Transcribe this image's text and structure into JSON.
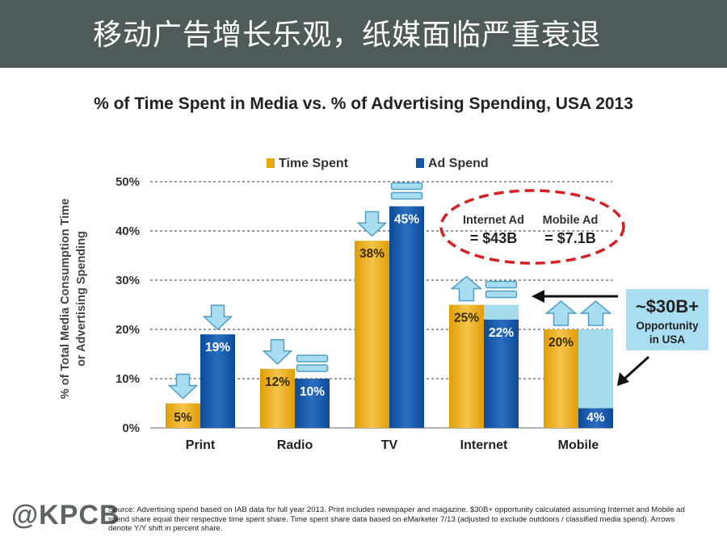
{
  "header": {
    "title": "移动广告增长乐观，纸媒面临严重衰退"
  },
  "chart_data": {
    "type": "bar",
    "title": "% of Time Spent in Media vs. % of Advertising Spending, USA 2013",
    "ylabel_lines": [
      "% of Total Media Consumption Time",
      "or Advertising Spending"
    ],
    "categories": [
      "Print",
      "Radio",
      "TV",
      "Internet",
      "Mobile"
    ],
    "series": [
      {
        "name": "Time Spent",
        "values": [
          5,
          12,
          38,
          25,
          20
        ],
        "labels": [
          "5%",
          "12%",
          "38%",
          "25%",
          "20%"
        ],
        "arrows": [
          "down",
          "down",
          "down",
          "up",
          "up"
        ],
        "color": "#e8a812"
      },
      {
        "name": "Ad Spend",
        "values": [
          19,
          10,
          45,
          22,
          4
        ],
        "labels": [
          "19%",
          "10%",
          "45%",
          "22%",
          "4%"
        ],
        "arrows": [
          "down",
          "equal",
          "equal",
          "equal",
          "up"
        ],
        "color": "#1456a6"
      }
    ],
    "ylim": [
      0,
      50
    ],
    "yticks": [
      0,
      10,
      20,
      30,
      40,
      50
    ],
    "ytick_labels": [
      "0%",
      "10%",
      "20%",
      "30%",
      "40%",
      "50%"
    ],
    "grid": true,
    "legend": "top-center",
    "opportunity_fill_color": "#a4dcec",
    "annotations": {
      "internet_ad": {
        "line1": "Internet Ad",
        "line2": "= $43B"
      },
      "mobile_ad": {
        "line1": "Mobile Ad",
        "line2": "= $7.1B"
      },
      "opportunity": {
        "big": "~$30B+",
        "line1": "Opportunity",
        "line2": "in USA"
      }
    }
  },
  "footer": {
    "logo": "@KPCB",
    "source": "Source: Advertising spend based on IAB data for full year 2013. Print includes newspaper and magazine. $30B+ opportunity calculated assuming Internet and Mobile ad spend share equal their respective time spent share. Time spent share data based on eMarketer 7/13 (adjusted to exclude outdoors / classified media spend). Arrows denote Y/Y shift in percent share."
  }
}
